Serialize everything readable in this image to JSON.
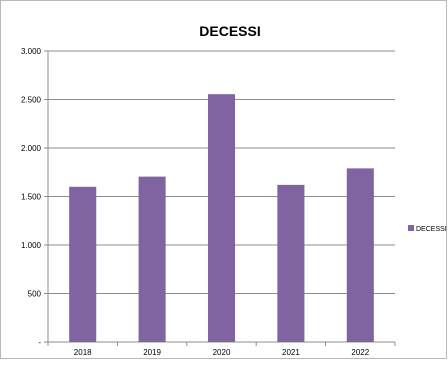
{
  "chart_data": {
    "type": "bar",
    "title": "DECESSI",
    "categories": [
      "2018",
      "2019",
      "2020",
      "2021",
      "2022"
    ],
    "series": [
      {
        "name": "DECESSI",
        "values": [
          1600,
          1705,
          2555,
          1620,
          1790
        ],
        "color": "#8064a2"
      }
    ],
    "y_ticks": [
      "-",
      "500",
      "1.000",
      "1.500",
      "2.000",
      "2.500",
      "3.000"
    ],
    "ylim": [
      0,
      3000
    ],
    "y_step": 500,
    "grid": true,
    "legend": "right",
    "xlabel": "",
    "ylabel": ""
  }
}
